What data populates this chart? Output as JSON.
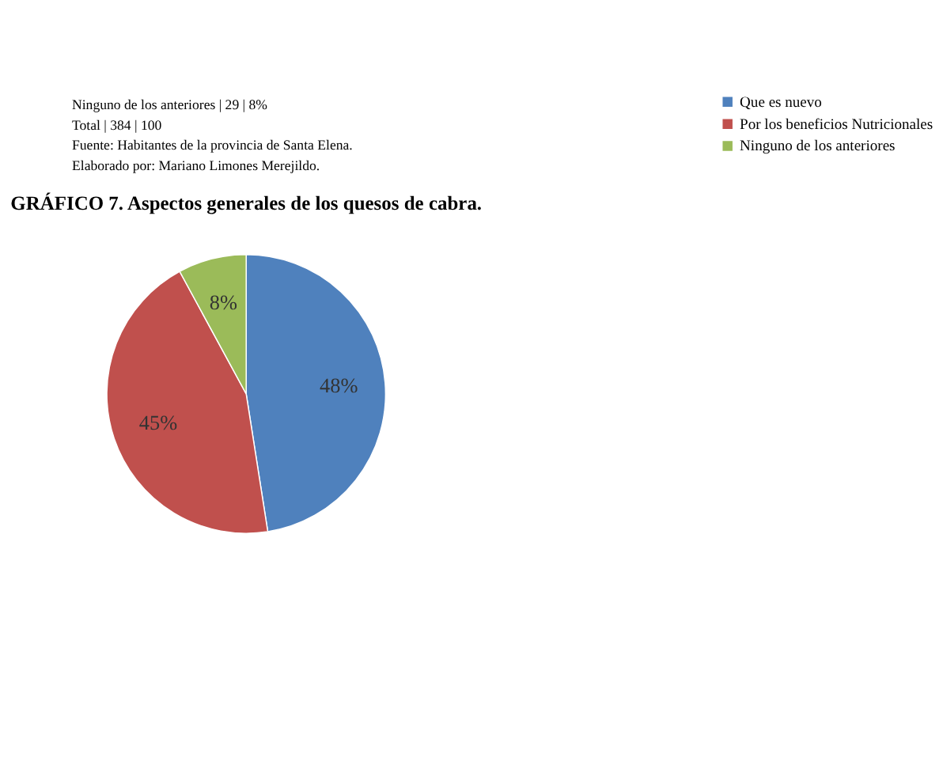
{
  "chart_data": {
    "type": "pie",
    "title": "GRÁFICO 7. Aspectos generales de los quesos de cabra.",
    "categories": [
      "Que es nuevo",
      "Por los beneficios Nutricionales",
      "Ninguno de los anteriores"
    ],
    "values": [
      48,
      45,
      8
    ],
    "colors": [
      "#4f81bd",
      "#c0504d",
      "#9bbb59"
    ],
    "value_labels": [
      "48%",
      "45%",
      "8%"
    ],
    "legend": "right",
    "annotations": [
      "Ninguno de los anteriores | 29 | 8%",
      "Total | 384 | 100",
      "Fuente: Habitantes de la provincia de Santa Elena.",
      "Elaborado por: Mariano Limones Merejildo."
    ]
  }
}
